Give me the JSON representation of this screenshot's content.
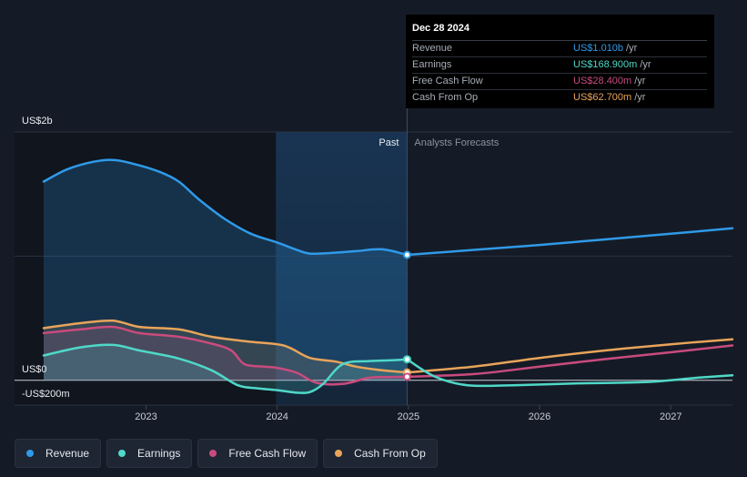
{
  "chart_data": {
    "type": "line",
    "y_axis": {
      "top_label": "US$2b",
      "zero_label": "US$0",
      "bottom_label": "-US$200m",
      "ylim": [
        -200,
        2000
      ],
      "unit": "US$m"
    },
    "x_ticks": [
      {
        "year": 2023,
        "label": "2023"
      },
      {
        "year": 2024,
        "label": "2024"
      },
      {
        "year": 2025,
        "label": "2025"
      },
      {
        "year": 2026,
        "label": "2026"
      },
      {
        "year": 2027,
        "label": "2027"
      }
    ],
    "xlim": [
      2022.22,
      2027.47
    ],
    "past_label": "Past",
    "forecast_label": "Analysts Forecasts",
    "divider_x": 2024.99,
    "highlight_start": 2023.99,
    "grid": true,
    "legend_position": "bottom-left",
    "series": [
      {
        "name": "Revenue",
        "color": "#2f9ae8",
        "fill": true,
        "points": [
          [
            2022.22,
            1600
          ],
          [
            2022.4,
            1700
          ],
          [
            2022.6,
            1760
          ],
          [
            2022.75,
            1775
          ],
          [
            2022.9,
            1745
          ],
          [
            2023.1,
            1680
          ],
          [
            2023.25,
            1600
          ],
          [
            2023.4,
            1460
          ],
          [
            2023.6,
            1300
          ],
          [
            2023.8,
            1180
          ],
          [
            2024.0,
            1110
          ],
          [
            2024.15,
            1050
          ],
          [
            2024.25,
            1020
          ],
          [
            2024.4,
            1025
          ],
          [
            2024.6,
            1040
          ],
          [
            2024.8,
            1055
          ],
          [
            2024.99,
            1010
          ]
        ],
        "forecast": [
          [
            2024.99,
            1010
          ],
          [
            2025.5,
            1050
          ],
          [
            2026.0,
            1090
          ],
          [
            2026.5,
            1135
          ],
          [
            2027.0,
            1180
          ],
          [
            2027.47,
            1225
          ]
        ]
      },
      {
        "name": "Earnings",
        "color": "#4fd8c8",
        "fill": true,
        "points": [
          [
            2022.22,
            200
          ],
          [
            2022.5,
            265
          ],
          [
            2022.75,
            285
          ],
          [
            2022.95,
            240
          ],
          [
            2023.25,
            175
          ],
          [
            2023.5,
            80
          ],
          [
            2023.7,
            -40
          ],
          [
            2023.85,
            -65
          ],
          [
            2024.0,
            -80
          ],
          [
            2024.15,
            -100
          ],
          [
            2024.25,
            -95
          ],
          [
            2024.35,
            -30
          ],
          [
            2024.5,
            130
          ],
          [
            2024.7,
            155
          ],
          [
            2024.85,
            160
          ],
          [
            2024.99,
            168.9
          ]
        ],
        "forecast": [
          [
            2024.99,
            168.9
          ],
          [
            2025.2,
            30
          ],
          [
            2025.45,
            -40
          ],
          [
            2025.8,
            -40
          ],
          [
            2026.3,
            -25
          ],
          [
            2026.8,
            -15
          ],
          [
            2027.2,
            20
          ],
          [
            2027.47,
            40
          ]
        ]
      },
      {
        "name": "Free Cash Flow",
        "color": "#c94b7e",
        "fill": true,
        "points": [
          [
            2022.22,
            380
          ],
          [
            2022.5,
            410
          ],
          [
            2022.75,
            430
          ],
          [
            2022.95,
            380
          ],
          [
            2023.25,
            350
          ],
          [
            2023.5,
            295
          ],
          [
            2023.65,
            240
          ],
          [
            2023.75,
            130
          ],
          [
            2023.9,
            110
          ],
          [
            2024.0,
            100
          ],
          [
            2024.15,
            60
          ],
          [
            2024.3,
            -20
          ],
          [
            2024.5,
            -30
          ],
          [
            2024.7,
            20
          ],
          [
            2024.85,
            25
          ],
          [
            2024.99,
            28.4
          ]
        ],
        "forecast": [
          [
            2024.99,
            28.4
          ],
          [
            2025.5,
            50
          ],
          [
            2026.0,
            110
          ],
          [
            2026.5,
            170
          ],
          [
            2027.0,
            225
          ],
          [
            2027.47,
            280
          ]
        ]
      },
      {
        "name": "Cash From Op",
        "color": "#e8a45a",
        "fill": true,
        "points": [
          [
            2022.22,
            420
          ],
          [
            2022.5,
            460
          ],
          [
            2022.75,
            480
          ],
          [
            2022.95,
            430
          ],
          [
            2023.25,
            410
          ],
          [
            2023.5,
            350
          ],
          [
            2023.8,
            310
          ],
          [
            2024.0,
            290
          ],
          [
            2024.1,
            260
          ],
          [
            2024.25,
            180
          ],
          [
            2024.45,
            150
          ],
          [
            2024.6,
            110
          ],
          [
            2024.8,
            80
          ],
          [
            2024.99,
            62.7
          ]
        ],
        "forecast": [
          [
            2024.99,
            62.7
          ],
          [
            2025.5,
            110
          ],
          [
            2026.0,
            180
          ],
          [
            2026.5,
            240
          ],
          [
            2027.0,
            290
          ],
          [
            2027.47,
            330
          ]
        ]
      }
    ],
    "tooltip": {
      "date": "Dec 28 2024",
      "rows": [
        {
          "name": "Revenue",
          "value": "US$1.010b",
          "unit": "/yr",
          "color": "#2f9ae8"
        },
        {
          "name": "Earnings",
          "value": "US$168.900m",
          "unit": "/yr",
          "color": "#4fd8c8"
        },
        {
          "name": "Free Cash Flow",
          "value": "US$28.400m",
          "unit": "/yr",
          "color": "#c94b7e"
        },
        {
          "name": "Cash From Op",
          "value": "US$62.700m",
          "unit": "/yr",
          "color": "#e8a45a"
        }
      ]
    }
  },
  "legend": [
    {
      "label": "Revenue",
      "color": "#2f9ae8"
    },
    {
      "label": "Earnings",
      "color": "#4fd8c8"
    },
    {
      "label": "Free Cash Flow",
      "color": "#c94b7e"
    },
    {
      "label": "Cash From Op",
      "color": "#e8a45a"
    }
  ]
}
